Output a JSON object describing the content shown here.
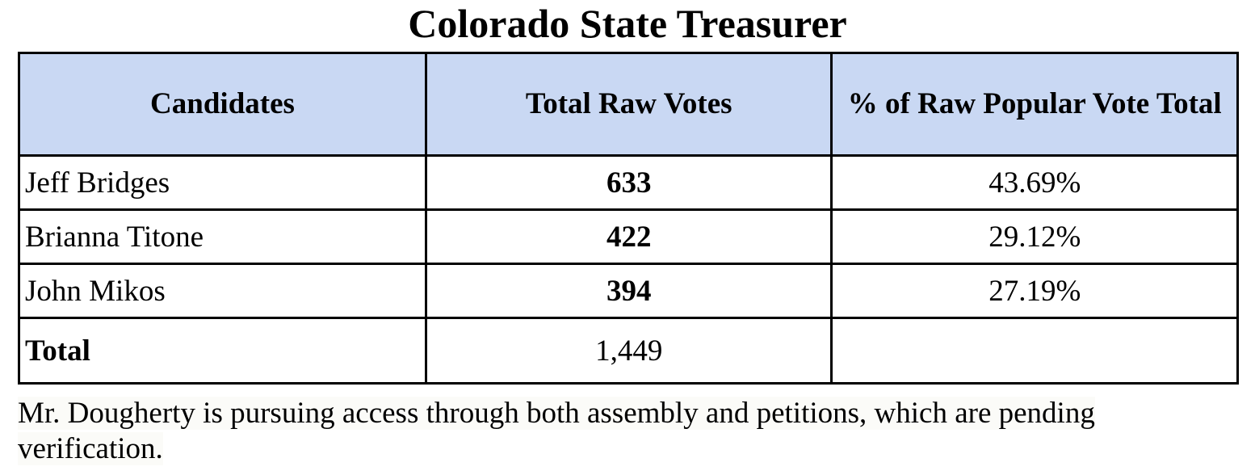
{
  "title": "Colorado State Treasurer",
  "table": {
    "headers": [
      "Candidates",
      "Total Raw Votes",
      "% of Raw Popular Vote Total"
    ],
    "rows": [
      {
        "candidate": "Jeff Bridges",
        "votes": "633",
        "percent": "43.69%"
      },
      {
        "candidate": "Brianna Titone",
        "votes": "422",
        "percent": "29.12%"
      },
      {
        "candidate": "John Mikos",
        "votes": "394",
        "percent": "27.19%"
      }
    ],
    "total": {
      "label": "Total",
      "votes": "1,449",
      "percent": ""
    }
  },
  "note": "Mr. Dougherty is pursuing access through both assembly and petitions, which are pending verification."
}
